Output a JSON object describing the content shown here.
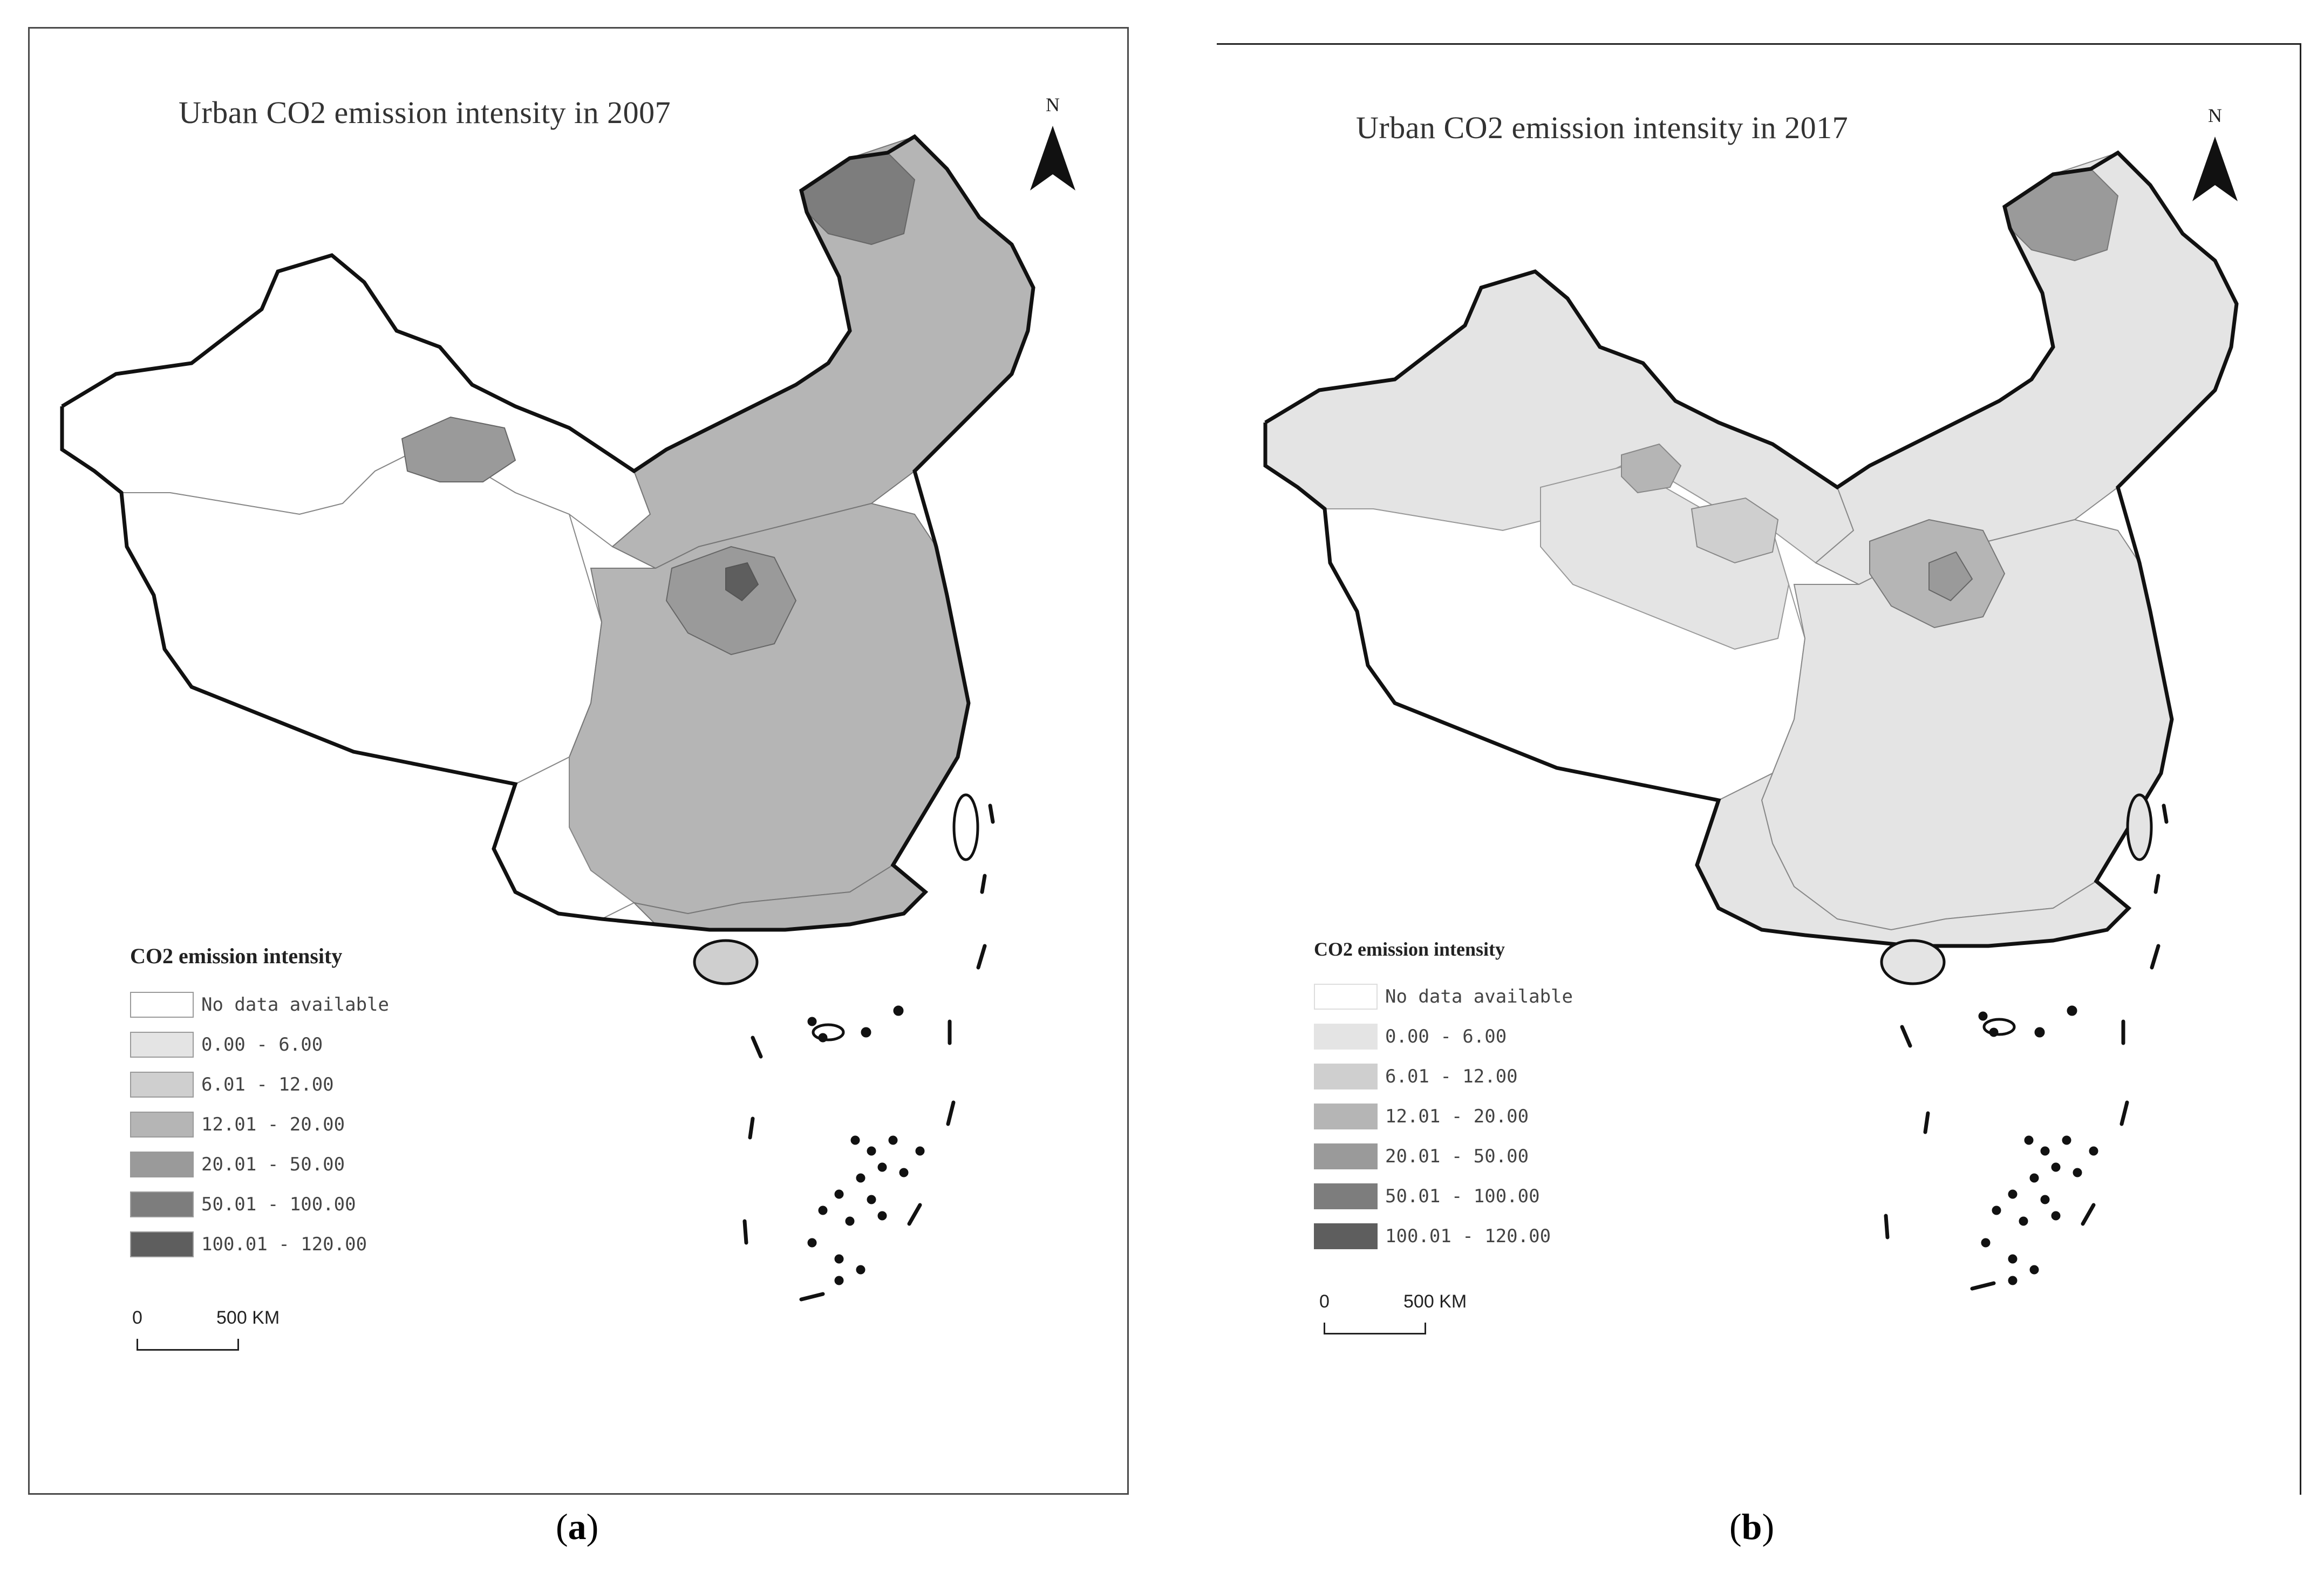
{
  "panels": [
    {
      "title": "Urban CO2 emission intensity in 2007",
      "north": "N",
      "caption": "a",
      "legend_title": "CO2 emission intensity",
      "scale_zero": "0",
      "scale_distance": "500 KM"
    },
    {
      "title": "Urban CO2 emission intensity in 2017",
      "north": "N",
      "caption": "b",
      "legend_title": "CO2  emission  intensity",
      "scale_zero": "0",
      "scale_distance": "500 KM"
    }
  ],
  "legend": [
    {
      "label": "No data available",
      "color": "#ffffff"
    },
    {
      "label": "0.00 - 6.00",
      "color": "#e4e4e4"
    },
    {
      "label": "6.01 - 12.00",
      "color": "#cfcfcf"
    },
    {
      "label": "12.01 - 20.00",
      "color": "#b5b5b5"
    },
    {
      "label": "20.01 - 50.00",
      "color": "#9a9a9a"
    },
    {
      "label": "50.01 - 100.00",
      "color": "#7d7d7d"
    },
    {
      "label": "100.01 - 120.00",
      "color": "#5e5e5e"
    }
  ]
}
